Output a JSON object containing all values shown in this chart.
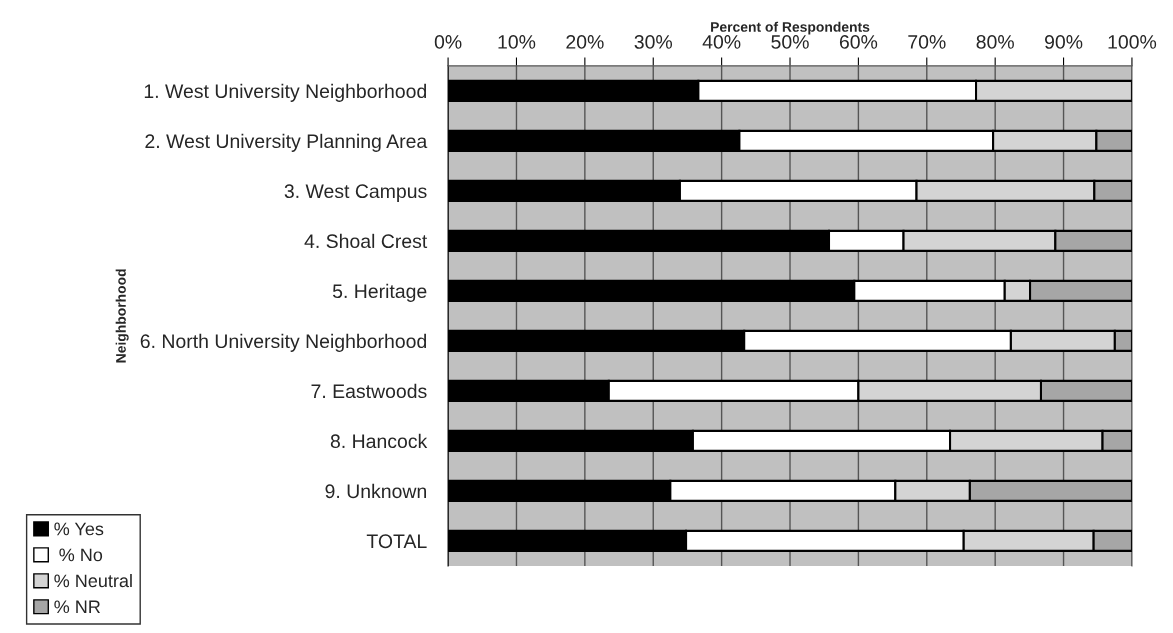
{
  "chart_data": {
    "type": "bar",
    "orientation": "horizontal",
    "stacked": true,
    "xlabel": "Percent of Respondents",
    "ylabel": "Neighborhood",
    "categories": [
      "1. West University Neighborhood",
      "2. West University Planning Area",
      "3. West Campus",
      "4. Shoal Crest",
      "5. Heritage",
      "6. North University Neighborhood",
      "7. Eastwoods",
      "8. Hancock",
      "9. Unknown",
      "TOTAL"
    ],
    "series": [
      {
        "name": "% Yes",
        "color": "#000000",
        "values": [
          36.6,
          42.6,
          33.9,
          55.7,
          59.4,
          43.3,
          23.5,
          35.8,
          32.5,
          34.8
        ]
      },
      {
        "name": " % No",
        "color": "#ffffff",
        "values": [
          40.6,
          37.1,
          34.6,
          10.9,
          22.0,
          39.0,
          36.5,
          37.6,
          32.9,
          40.6
        ]
      },
      {
        "name": "% Neutral",
        "color": "#d4d4d4",
        "values": [
          22.8,
          15.1,
          26.0,
          22.2,
          3.7,
          15.2,
          26.7,
          22.3,
          10.9,
          19.0
        ]
      },
      {
        "name": "% NR",
        "color": "#a6a6a6",
        "values": [
          0,
          5.2,
          5.5,
          11.2,
          14.9,
          2.5,
          13.3,
          4.3,
          23.7,
          5.6
        ]
      }
    ],
    "xlim": [
      0,
      100
    ],
    "xticks": [
      {
        "value": 0,
        "label": "0%"
      },
      {
        "value": 10,
        "label": "10%"
      },
      {
        "value": 20,
        "label": "20%"
      },
      {
        "value": 30,
        "label": "30%"
      },
      {
        "value": 40,
        "label": "40%"
      },
      {
        "value": 50,
        "label": "50%"
      },
      {
        "value": 60,
        "label": "60%"
      },
      {
        "value": 70,
        "label": "70%"
      },
      {
        "value": 80,
        "label": "80%"
      },
      {
        "value": 90,
        "label": "90%"
      },
      {
        "value": 100,
        "label": "100%"
      }
    ],
    "grid": "x",
    "legend": "bottom left"
  }
}
